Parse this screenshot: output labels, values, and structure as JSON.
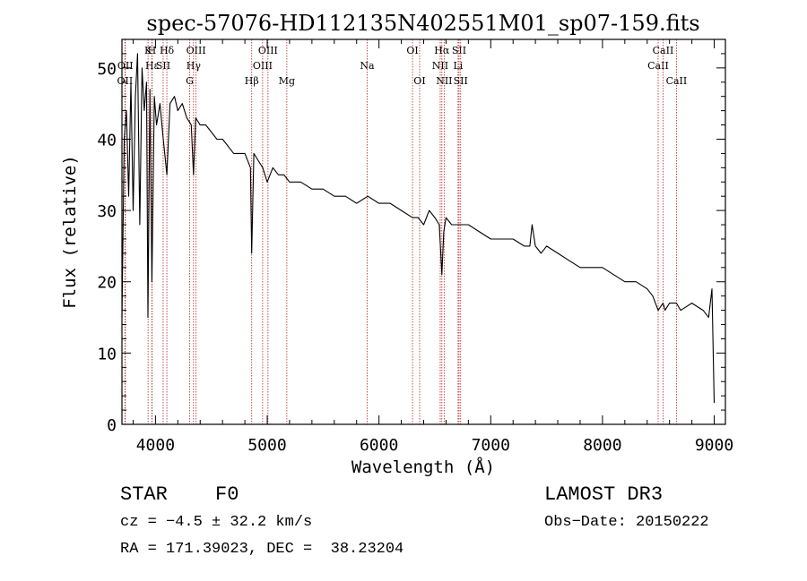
{
  "chart_data": {
    "type": "line",
    "title": "spec-57076-HD112135N402551M01_sp07-159.fits",
    "xlabel": "Wavelength (Å)",
    "ylabel": "Flux (relative)",
    "xlim": [
      3700,
      9100
    ],
    "ylim": [
      0,
      54
    ],
    "xticks": [
      4000,
      5000,
      6000,
      7000,
      8000,
      9000
    ],
    "yticks": [
      0,
      10,
      20,
      30,
      40,
      50
    ],
    "series": [
      {
        "name": "flux",
        "x": [
          3700,
          3720,
          3740,
          3760,
          3780,
          3800,
          3820,
          3840,
          3860,
          3880,
          3900,
          3920,
          3933,
          3950,
          3968,
          3990,
          4010,
          4040,
          4070,
          4102,
          4130,
          4170,
          4200,
          4240,
          4280,
          4320,
          4340,
          4360,
          4400,
          4450,
          4500,
          4550,
          4600,
          4650,
          4700,
          4750,
          4800,
          4850,
          4861,
          4880,
          4920,
          4960,
          5000,
          5050,
          5100,
          5150,
          5200,
          5300,
          5400,
          5500,
          5600,
          5700,
          5800,
          5900,
          6000,
          6100,
          6200,
          6300,
          6350,
          6400,
          6450,
          6500,
          6540,
          6563,
          6580,
          6600,
          6650,
          6700,
          6750,
          6800,
          6900,
          7000,
          7100,
          7200,
          7300,
          7350,
          7370,
          7400,
          7450,
          7500,
          7600,
          7700,
          7800,
          7900,
          8000,
          8100,
          8200,
          8300,
          8400,
          8450,
          8498,
          8542,
          8560,
          8600,
          8662,
          8700,
          8800,
          8900,
          8950,
          8980,
          9000
        ],
        "values": [
          15,
          40,
          44,
          32,
          48,
          30,
          46,
          52,
          28,
          50,
          44,
          48,
          15,
          47,
          20,
          46,
          42,
          45,
          40,
          35,
          45,
          46,
          44,
          45,
          43,
          42,
          35,
          43,
          42,
          42,
          41,
          40,
          40,
          39,
          38,
          38,
          38,
          36,
          24,
          38,
          37,
          36,
          34,
          36,
          35,
          35,
          34,
          34,
          33,
          33,
          32,
          32,
          31,
          32,
          31,
          31,
          30,
          29,
          29,
          28,
          30,
          29,
          28,
          21,
          27,
          29,
          28,
          28,
          28,
          28,
          27,
          26,
          26,
          26,
          25,
          25,
          28,
          25,
          24,
          25,
          24,
          23,
          22,
          22,
          22,
          21,
          20,
          20,
          19,
          18,
          16,
          17,
          16,
          17,
          17,
          16,
          17,
          16,
          15,
          19,
          3
        ]
      }
    ],
    "lines": [
      {
        "label": "K",
        "x": 3933.7,
        "row": 0
      },
      {
        "label": "H",
        "x": 3968.5,
        "row": 0
      },
      {
        "label": "Hε",
        "x": 3970.1,
        "row": 1
      },
      {
        "label": "SII",
        "x": 4068.6,
        "row": 1
      },
      {
        "label": "Hδ",
        "x": 4101.7,
        "row": 0
      },
      {
        "label": "Hγ",
        "x": 4340.5,
        "row": 1
      },
      {
        "label": "G",
        "x": 4305.6,
        "row": 2
      },
      {
        "label": "OIII",
        "x": 4363.2,
        "row": 0
      },
      {
        "label": "Hβ",
        "x": 4861.3,
        "row": 2
      },
      {
        "label": "OIII",
        "x": 4958.9,
        "row": 1
      },
      {
        "label": "OIII",
        "x": 5006.8,
        "row": 0
      },
      {
        "label": "Mg",
        "x": 5175.3,
        "row": 2
      },
      {
        "label": "Na",
        "x": 5894.0,
        "row": 1
      },
      {
        "label": "OI",
        "x": 6300.3,
        "row": 0
      },
      {
        "label": "OI",
        "x": 6363.8,
        "row": 2
      },
      {
        "label": "NII",
        "x": 6548.1,
        "row": 1
      },
      {
        "label": "Hα",
        "x": 6562.8,
        "row": 0
      },
      {
        "label": "NII",
        "x": 6583.5,
        "row": 2
      },
      {
        "label": "Li",
        "x": 6707.8,
        "row": 1
      },
      {
        "label": "SII",
        "x": 6716.4,
        "row": 0
      },
      {
        "label": "SII",
        "x": 6730.8,
        "row": 2
      },
      {
        "label": "CaII",
        "x": 8498.0,
        "row": 1
      },
      {
        "label": "CaII",
        "x": 8542.1,
        "row": 0
      },
      {
        "label": "CaII",
        "x": 8662.1,
        "row": 2
      },
      {
        "label": "OII",
        "x": 3727.1,
        "row": 2
      },
      {
        "label": "OII",
        "x": 3729.9,
        "row": 1
      }
    ]
  },
  "info": {
    "object_class": "STAR",
    "subclass": "F0",
    "survey": "LAMOST DR3",
    "redshift": "cz = −4.5 ± 32.2 km/s",
    "obs_date": "Obs−Date: 20150222",
    "coords": "RA = 171.39023, DEC =  38.23204"
  }
}
